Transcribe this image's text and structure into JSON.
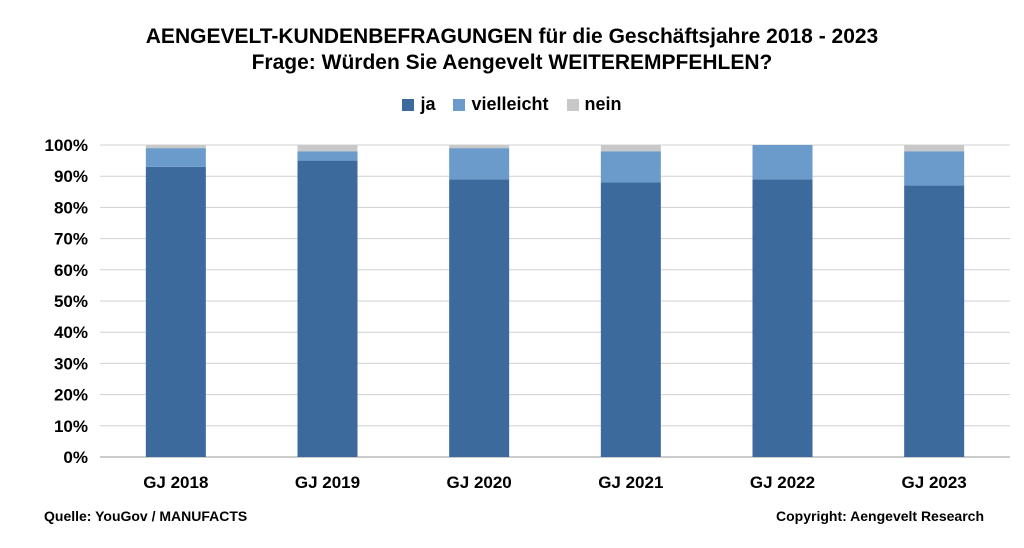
{
  "chart_data": {
    "type": "bar",
    "stacked": true,
    "title": "AENGEVELT-KUNDENBEFRAGUNGEN für die Geschäftsjahre 2018 - 2023",
    "subtitle": "Frage: Würden Sie Aengevelt WEITEREMPFEHLEN?",
    "xlabel": "",
    "ylabel": "",
    "ylim": [
      0,
      100
    ],
    "yticks": [
      "0%",
      "10%",
      "20%",
      "30%",
      "40%",
      "50%",
      "60%",
      "70%",
      "80%",
      "90%",
      "100%"
    ],
    "grid": true,
    "legend_position": "top",
    "categories": [
      "GJ 2018",
      "GJ 2019",
      "GJ 2020",
      "GJ 2021",
      "GJ 2022",
      "GJ 2023"
    ],
    "series": [
      {
        "name": "ja",
        "color": "#3D6A9C",
        "values": [
          93,
          95,
          89,
          88,
          89,
          87
        ]
      },
      {
        "name": "vielleicht",
        "color": "#6A9BCB",
        "values": [
          6,
          3,
          10,
          10,
          11,
          11
        ]
      },
      {
        "name": "nein",
        "color": "#C8C8C8",
        "values": [
          1,
          2,
          1,
          2,
          0,
          2
        ]
      }
    ]
  },
  "footer": {
    "source": "Quelle: YouGov / MANUFACTS",
    "copyright": "Copyright: Aengevelt Research"
  }
}
